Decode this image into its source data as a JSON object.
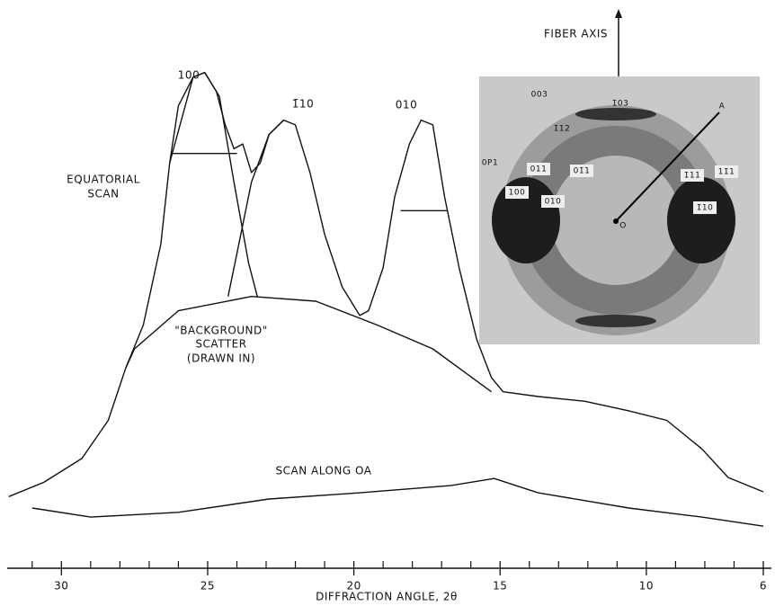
{
  "chart_data": {
    "type": "line",
    "xlabel": "DIFFRACTION ANGLE, 2θ",
    "xlim": [
      32.1,
      5.6
    ],
    "xticks": [
      30,
      25,
      20,
      15,
      10,
      6
    ],
    "xminorticks": [
      31,
      29,
      28,
      27,
      26,
      24,
      23,
      22,
      21,
      19,
      18,
      17,
      16,
      14,
      13,
      12,
      11,
      9,
      8,
      7
    ],
    "ylim": [
      0,
      100
    ],
    "color": "#111111",
    "series": [
      {
        "x": [
          31.8,
          30.6,
          29.3,
          28.4,
          27.8,
          27.2,
          26.6,
          26.3,
          26.0,
          25.5,
          25.1,
          24.7,
          24.4,
          24.1,
          23.8,
          23.5,
          23.2,
          22.9,
          22.4,
          22.0,
          21.5,
          21.0,
          20.4,
          19.8,
          19.5,
          19.0,
          18.6,
          18.1,
          17.7,
          17.3,
          16.9,
          16.4,
          15.8,
          15.3,
          14.9,
          13.7,
          12.1,
          10.6,
          9.3,
          8.1,
          7.2,
          6.0
        ],
        "values": [
          9,
          12,
          17,
          25,
          36,
          45,
          62,
          79,
          91,
          97,
          98,
          94,
          87,
          82,
          83,
          77,
          79,
          85,
          88,
          87,
          77,
          64,
          53,
          47,
          48,
          57,
          72,
          83,
          88,
          87,
          72,
          57,
          42,
          34,
          31,
          30,
          29,
          27,
          25,
          19,
          13,
          10
        ]
      },
      {
        "x": [
          31.0,
          29.0,
          26.0,
          22.9,
          19.8,
          16.7,
          15.2,
          13.7,
          10.6,
          8.1,
          6.0
        ],
        "values": [
          6.6,
          4.7,
          5.7,
          8.5,
          9.8,
          11.3,
          12.8,
          9.8,
          6.6,
          4.7,
          2.8
        ]
      },
      {
        "x": [
          27.8,
          27.5,
          26.0,
          23.5,
          21.3,
          19.2,
          17.3,
          15.3
        ],
        "values": [
          36,
          40,
          48,
          51,
          50,
          45,
          40,
          31
        ]
      },
      {
        "x": [
          26.3,
          25.5,
          25.1,
          24.6,
          24.1,
          23.6,
          23.3
        ],
        "values": [
          79,
          97,
          98,
          93,
          75,
          58,
          51
        ]
      },
      {
        "x": [
          24.3,
          24.0,
          23.5,
          22.9,
          22.4
        ],
        "values": [
          51,
          60,
          75,
          85,
          88
        ]
      },
      {
        "x": [
          26.2,
          24.0
        ],
        "values": [
          81,
          81
        ]
      },
      {
        "x": [
          18.4,
          16.8
        ],
        "values": [
          69,
          69
        ]
      }
    ],
    "annotations": [
      "100",
      "1̄10",
      "010",
      "EQUATORIAL",
      "SCAN",
      "\"BACKGROUND\"",
      "SCATTER",
      "(DRAWN IN)",
      "SCAN ALONG OA"
    ],
    "inset": {
      "axis_label": "FIBER AXIS",
      "labels": [
        "003",
        "1̄03",
        "1̄12",
        "0P1",
        "011",
        "01̄1",
        "100",
        "010",
        "1̄11",
        "11̄1",
        "1̄10",
        "O",
        "A"
      ]
    }
  }
}
